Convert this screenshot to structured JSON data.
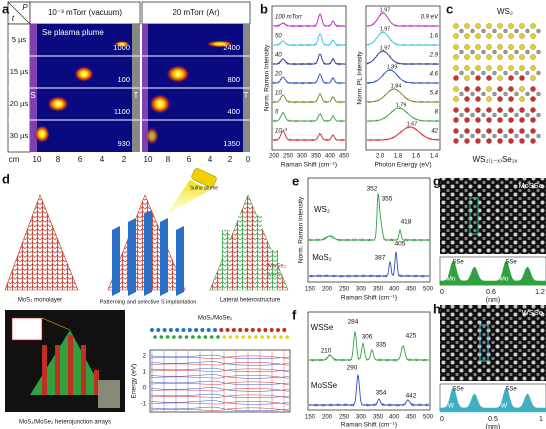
{
  "panels": {
    "a": {
      "label": "a",
      "corner_t": "t",
      "corner_p": "P",
      "columns": [
        "10⁻³ mTorr (vacuum)",
        "20 mTorr (Ar)"
      ],
      "rows": [
        "5 µs",
        "15 µs",
        "20 µs",
        "30 µs"
      ],
      "plume_label": "Se plasma plume",
      "source": "S",
      "target": "T",
      "values_vacuum": [
        1000,
        100,
        1100,
        930
      ],
      "values_ar": [
        2400,
        800,
        400,
        1350
      ],
      "x_unit": "cm",
      "x_ticks_vacuum": [
        10,
        8,
        6,
        4,
        2
      ],
      "x_ticks_ar": [
        10,
        8,
        6,
        4,
        2,
        0
      ]
    },
    "b": {
      "label": "b",
      "raman": {
        "pressures": [
          "100 mTorr",
          "50",
          "40",
          "20",
          "10",
          "5",
          "10⁻³"
        ],
        "xticks": [
          200,
          250,
          300,
          350,
          400,
          450
        ],
        "xlabel": "Raman Shift (cm⁻¹)",
        "ylabel": "Norm. Raman Intensity"
      },
      "pl": {
        "peaks": [
          "1.97",
          "1.97",
          "1.97",
          "1.89",
          "1.84",
          "1.79",
          "1.67"
        ],
        "energies": [
          "0.9 eV",
          "1.6",
          "2.9",
          "4.6",
          "5.4",
          "8",
          "42"
        ],
        "xticks": [
          "2.0",
          "1.8",
          "1.6",
          "1.4"
        ],
        "xlabel": "Photon Energy (eV)",
        "ylabel": "Norm. PL Intensity"
      }
    },
    "c": {
      "label": "c",
      "top": "WS₂",
      "bottom": "WS₂₍₁₋ₓ₎Se₂ₓ"
    },
    "d": {
      "label": "d",
      "step1": "MoS₂ monolayer",
      "step2": "Patterning and selective S implantation",
      "plume": "Sulfur plume",
      "step3": "Lateral heterostructure",
      "legend": [
        "MoSe₂",
        "MoS₂"
      ],
      "array_caption": "MoS₂/MoSe₂ heterojunction arrays",
      "band_title": "MoS₂/MoSe₂",
      "band_ylabel": "Energy (eV)",
      "band_yticks": [
        2,
        1,
        0,
        -1
      ]
    },
    "e": {
      "label": "e",
      "top": "WS₂",
      "top_peaks": [
        352,
        355,
        418
      ],
      "bottom": "MoS₂",
      "bottom_peaks": [
        405,
        387
      ],
      "xticks": [
        150,
        200,
        250,
        300,
        350,
        400,
        450,
        500
      ],
      "xlabel": "Raman Shift (cm⁻¹)",
      "ylabel": "Norm. Raman Intensity"
    },
    "f": {
      "label": "f",
      "top": "WSSe",
      "top_peaks": [
        284,
        210,
        306,
        335,
        425
      ],
      "bottom": "MoSSe",
      "bottom_peaks": [
        290,
        354,
        442
      ],
      "xticks": [
        150,
        200,
        250,
        300,
        350,
        400,
        450,
        500
      ],
      "xlabel": "Raman Shift (cm⁻¹)"
    },
    "g": {
      "label": "g",
      "material": "MoSSe",
      "profile": [
        "SSe",
        "SSe",
        "Mo",
        "Mo"
      ],
      "xticks": [
        "0",
        "0.6",
        "1.2"
      ],
      "xlabel": "(nm)"
    },
    "h": {
      "label": "h",
      "material": "WSSe",
      "profile": [
        "SSe",
        "SSe",
        "W",
        "W"
      ],
      "xticks": [
        "0",
        "0.5",
        "1"
      ],
      "xlabel": "(nm)"
    }
  }
}
